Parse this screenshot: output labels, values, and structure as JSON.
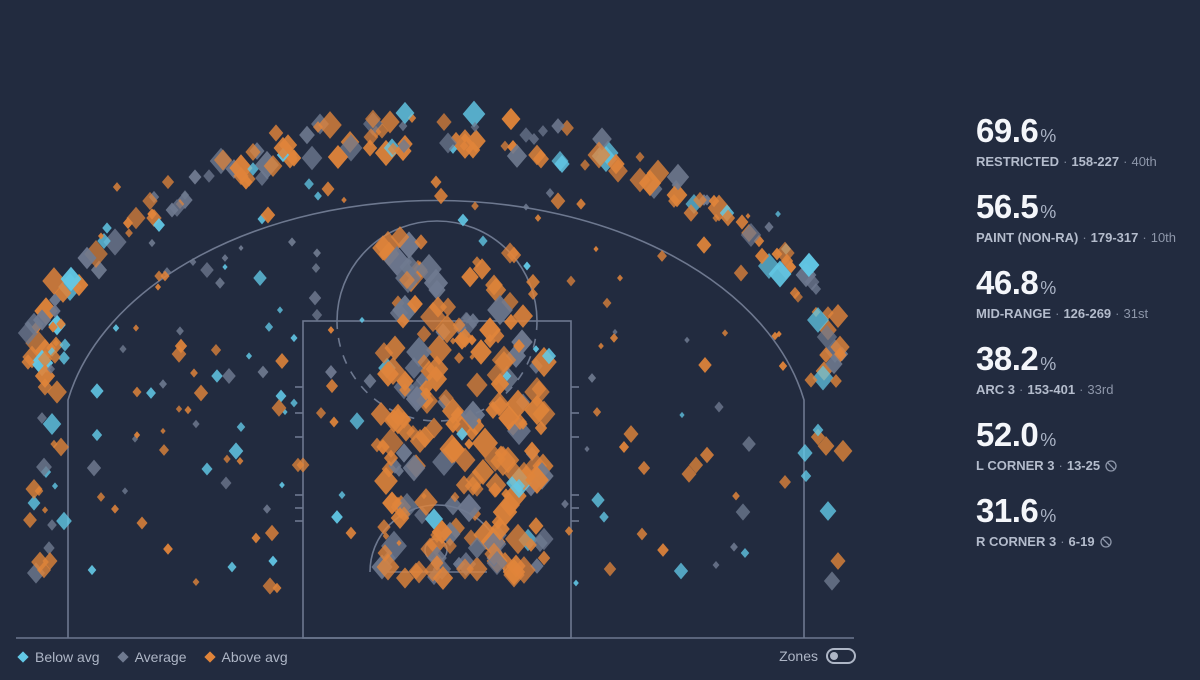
{
  "colors": {
    "background": "#222b3f",
    "court_lines": "#7b869e",
    "below_avg": "#62c8e6",
    "average": "#6f7a90",
    "above_avg": "#e0843a"
  },
  "stats": [
    {
      "value": "69.6",
      "unit": "%",
      "zone": "RESTRICTED",
      "shots": "158-227",
      "rank": "40th",
      "low_sample": false
    },
    {
      "value": "56.5",
      "unit": "%",
      "zone": "PAINT (NON-RA)",
      "shots": "179-317",
      "rank": "10th",
      "low_sample": false
    },
    {
      "value": "46.8",
      "unit": "%",
      "zone": "MID-RANGE",
      "shots": "126-269",
      "rank": "31st",
      "low_sample": false
    },
    {
      "value": "38.2",
      "unit": "%",
      "zone": "ARC 3",
      "shots": "153-401",
      "rank": "33rd",
      "low_sample": false
    },
    {
      "value": "52.0",
      "unit": "%",
      "zone": "L CORNER 3",
      "shots": "13-25",
      "rank": "",
      "low_sample": true
    },
    {
      "value": "31.6",
      "unit": "%",
      "zone": "R CORNER 3",
      "shots": "6-19",
      "rank": "",
      "low_sample": true
    }
  ],
  "legend": [
    {
      "label": "Below avg",
      "color": "#62c8e6"
    },
    {
      "label": "Average",
      "color": "#6f7a90"
    },
    {
      "label": "Above avg",
      "color": "#e0843a"
    }
  ],
  "zones_toggle": {
    "label": "Zones",
    "on": false
  },
  "separator": "·",
  "low_sample_icon": "ban-icon"
}
